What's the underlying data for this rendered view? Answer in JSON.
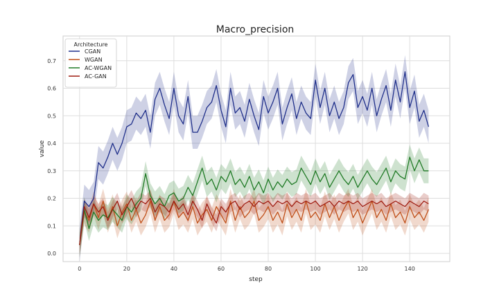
{
  "chart_data": {
    "type": "line",
    "title": "Macro_precision",
    "xlabel": "step",
    "ylabel": "value",
    "xlim": [
      -7,
      157
    ],
    "ylim": [
      -0.03,
      0.79
    ],
    "xticks": [
      0,
      20,
      40,
      60,
      80,
      100,
      120,
      140
    ],
    "yticks": [
      0.0,
      0.1,
      0.2,
      0.3,
      0.4,
      0.5,
      0.6,
      0.7
    ],
    "grid": true,
    "legend": {
      "title": "Architecture",
      "position": "top-left"
    },
    "series": [
      {
        "name": "CGAN",
        "color": "#1f2f8a",
        "band_halfwidth": 0.06,
        "points": [
          [
            0,
            0.03
          ],
          [
            2,
            0.19
          ],
          [
            4,
            0.17
          ],
          [
            6,
            0.2
          ],
          [
            8,
            0.33
          ],
          [
            10,
            0.31
          ],
          [
            12,
            0.35
          ],
          [
            14,
            0.4
          ],
          [
            16,
            0.36
          ],
          [
            18,
            0.4
          ],
          [
            20,
            0.46
          ],
          [
            22,
            0.47
          ],
          [
            24,
            0.51
          ],
          [
            26,
            0.49
          ],
          [
            28,
            0.52
          ],
          [
            30,
            0.44
          ],
          [
            32,
            0.56
          ],
          [
            34,
            0.6
          ],
          [
            36,
            0.54
          ],
          [
            38,
            0.49
          ],
          [
            40,
            0.6
          ],
          [
            42,
            0.5
          ],
          [
            44,
            0.47
          ],
          [
            46,
            0.57
          ],
          [
            48,
            0.44
          ],
          [
            50,
            0.44
          ],
          [
            52,
            0.48
          ],
          [
            54,
            0.53
          ],
          [
            56,
            0.55
          ],
          [
            58,
            0.61
          ],
          [
            60,
            0.52
          ],
          [
            62,
            0.46
          ],
          [
            64,
            0.6
          ],
          [
            66,
            0.51
          ],
          [
            68,
            0.53
          ],
          [
            70,
            0.48
          ],
          [
            72,
            0.56
          ],
          [
            74,
            0.5
          ],
          [
            76,
            0.45
          ],
          [
            78,
            0.57
          ],
          [
            80,
            0.51
          ],
          [
            82,
            0.55
          ],
          [
            84,
            0.6
          ],
          [
            86,
            0.47
          ],
          [
            88,
            0.53
          ],
          [
            90,
            0.58
          ],
          [
            92,
            0.49
          ],
          [
            94,
            0.55
          ],
          [
            96,
            0.51
          ],
          [
            98,
            0.49
          ],
          [
            100,
            0.63
          ],
          [
            102,
            0.53
          ],
          [
            104,
            0.6
          ],
          [
            106,
            0.5
          ],
          [
            108,
            0.55
          ],
          [
            110,
            0.49
          ],
          [
            112,
            0.53
          ],
          [
            114,
            0.62
          ],
          [
            116,
            0.65
          ],
          [
            118,
            0.53
          ],
          [
            120,
            0.57
          ],
          [
            122,
            0.52
          ],
          [
            124,
            0.6
          ],
          [
            126,
            0.5
          ],
          [
            128,
            0.56
          ],
          [
            130,
            0.61
          ],
          [
            132,
            0.52
          ],
          [
            134,
            0.63
          ],
          [
            136,
            0.55
          ],
          [
            138,
            0.66
          ],
          [
            140,
            0.53
          ],
          [
            142,
            0.59
          ],
          [
            144,
            0.48
          ],
          [
            146,
            0.52
          ],
          [
            148,
            0.46
          ]
        ]
      },
      {
        "name": "WGAN",
        "color": "#c0501a",
        "band_halfwidth": 0.045,
        "points": [
          [
            0,
            0.03
          ],
          [
            2,
            0.15
          ],
          [
            4,
            0.12
          ],
          [
            6,
            0.18
          ],
          [
            8,
            0.13
          ],
          [
            10,
            0.19
          ],
          [
            12,
            0.12
          ],
          [
            14,
            0.17
          ],
          [
            16,
            0.1
          ],
          [
            18,
            0.15
          ],
          [
            20,
            0.18
          ],
          [
            22,
            0.12
          ],
          [
            24,
            0.16
          ],
          [
            26,
            0.11
          ],
          [
            28,
            0.14
          ],
          [
            30,
            0.19
          ],
          [
            32,
            0.12
          ],
          [
            34,
            0.17
          ],
          [
            36,
            0.12
          ],
          [
            38,
            0.14
          ],
          [
            40,
            0.19
          ],
          [
            42,
            0.13
          ],
          [
            44,
            0.15
          ],
          [
            46,
            0.12
          ],
          [
            48,
            0.17
          ],
          [
            50,
            0.11
          ],
          [
            52,
            0.14
          ],
          [
            54,
            0.16
          ],
          [
            56,
            0.12
          ],
          [
            58,
            0.17
          ],
          [
            60,
            0.14
          ],
          [
            62,
            0.11
          ],
          [
            64,
            0.19
          ],
          [
            66,
            0.12
          ],
          [
            68,
            0.17
          ],
          [
            70,
            0.13
          ],
          [
            72,
            0.15
          ],
          [
            74,
            0.19
          ],
          [
            76,
            0.12
          ],
          [
            78,
            0.14
          ],
          [
            80,
            0.17
          ],
          [
            82,
            0.12
          ],
          [
            84,
            0.15
          ],
          [
            86,
            0.11
          ],
          [
            88,
            0.18
          ],
          [
            90,
            0.13
          ],
          [
            92,
            0.16
          ],
          [
            94,
            0.12
          ],
          [
            96,
            0.19
          ],
          [
            98,
            0.13
          ],
          [
            100,
            0.15
          ],
          [
            102,
            0.12
          ],
          [
            104,
            0.18
          ],
          [
            106,
            0.13
          ],
          [
            108,
            0.17
          ],
          [
            110,
            0.12
          ],
          [
            112,
            0.16
          ],
          [
            114,
            0.19
          ],
          [
            116,
            0.13
          ],
          [
            118,
            0.16
          ],
          [
            120,
            0.11
          ],
          [
            122,
            0.15
          ],
          [
            124,
            0.19
          ],
          [
            126,
            0.13
          ],
          [
            128,
            0.16
          ],
          [
            130,
            0.12
          ],
          [
            132,
            0.18
          ],
          [
            134,
            0.13
          ],
          [
            136,
            0.15
          ],
          [
            138,
            0.11
          ],
          [
            140,
            0.17
          ],
          [
            142,
            0.13
          ],
          [
            144,
            0.15
          ],
          [
            146,
            0.12
          ],
          [
            148,
            0.16
          ]
        ]
      },
      {
        "name": "AC-WGAN",
        "color": "#1f7a25",
        "band_halfwidth": 0.045,
        "points": [
          [
            0,
            0.03
          ],
          [
            2,
            0.16
          ],
          [
            4,
            0.09
          ],
          [
            6,
            0.15
          ],
          [
            8,
            0.12
          ],
          [
            10,
            0.14
          ],
          [
            12,
            0.13
          ],
          [
            14,
            0.16
          ],
          [
            16,
            0.14
          ],
          [
            18,
            0.12
          ],
          [
            20,
            0.17
          ],
          [
            22,
            0.15
          ],
          [
            24,
            0.18
          ],
          [
            26,
            0.2
          ],
          [
            28,
            0.29
          ],
          [
            30,
            0.21
          ],
          [
            32,
            0.18
          ],
          [
            34,
            0.2
          ],
          [
            36,
            0.17
          ],
          [
            38,
            0.21
          ],
          [
            40,
            0.22
          ],
          [
            42,
            0.19
          ],
          [
            44,
            0.2
          ],
          [
            46,
            0.24
          ],
          [
            48,
            0.21
          ],
          [
            50,
            0.26
          ],
          [
            52,
            0.31
          ],
          [
            54,
            0.25
          ],
          [
            56,
            0.27
          ],
          [
            58,
            0.23
          ],
          [
            60,
            0.28
          ],
          [
            62,
            0.26
          ],
          [
            64,
            0.3
          ],
          [
            66,
            0.25
          ],
          [
            68,
            0.27
          ],
          [
            70,
            0.24
          ],
          [
            72,
            0.28
          ],
          [
            74,
            0.23
          ],
          [
            76,
            0.26
          ],
          [
            78,
            0.22
          ],
          [
            80,
            0.27
          ],
          [
            82,
            0.23
          ],
          [
            84,
            0.26
          ],
          [
            86,
            0.24
          ],
          [
            88,
            0.27
          ],
          [
            90,
            0.25
          ],
          [
            92,
            0.26
          ],
          [
            94,
            0.31
          ],
          [
            96,
            0.28
          ],
          [
            98,
            0.25
          ],
          [
            100,
            0.3
          ],
          [
            102,
            0.26
          ],
          [
            104,
            0.29
          ],
          [
            106,
            0.24
          ],
          [
            108,
            0.27
          ],
          [
            110,
            0.3
          ],
          [
            112,
            0.27
          ],
          [
            114,
            0.25
          ],
          [
            116,
            0.28
          ],
          [
            118,
            0.24
          ],
          [
            120,
            0.27
          ],
          [
            122,
            0.3
          ],
          [
            124,
            0.27
          ],
          [
            126,
            0.25
          ],
          [
            128,
            0.28
          ],
          [
            130,
            0.31
          ],
          [
            132,
            0.26
          ],
          [
            134,
            0.3
          ],
          [
            136,
            0.28
          ],
          [
            138,
            0.27
          ],
          [
            140,
            0.35
          ],
          [
            142,
            0.3
          ],
          [
            144,
            0.34
          ],
          [
            146,
            0.3
          ],
          [
            148,
            0.3
          ]
        ]
      },
      {
        "name": "AC-GAN",
        "color": "#9e1a0f",
        "band_halfwidth": 0.03,
        "points": [
          [
            0,
            0.03
          ],
          [
            2,
            0.17
          ],
          [
            4,
            0.13
          ],
          [
            6,
            0.18
          ],
          [
            8,
            0.15
          ],
          [
            10,
            0.17
          ],
          [
            12,
            0.12
          ],
          [
            14,
            0.16
          ],
          [
            16,
            0.19
          ],
          [
            18,
            0.14
          ],
          [
            20,
            0.17
          ],
          [
            22,
            0.2
          ],
          [
            24,
            0.16
          ],
          [
            26,
            0.19
          ],
          [
            28,
            0.18
          ],
          [
            30,
            0.2
          ],
          [
            32,
            0.15
          ],
          [
            34,
            0.18
          ],
          [
            36,
            0.17
          ],
          [
            38,
            0.15
          ],
          [
            40,
            0.19
          ],
          [
            42,
            0.16
          ],
          [
            44,
            0.18
          ],
          [
            46,
            0.14
          ],
          [
            48,
            0.19
          ],
          [
            50,
            0.16
          ],
          [
            52,
            0.12
          ],
          [
            54,
            0.18
          ],
          [
            56,
            0.14
          ],
          [
            58,
            0.11
          ],
          [
            60,
            0.17
          ],
          [
            62,
            0.15
          ],
          [
            64,
            0.18
          ],
          [
            66,
            0.19
          ],
          [
            68,
            0.16
          ],
          [
            70,
            0.18
          ],
          [
            72,
            0.19
          ],
          [
            74,
            0.17
          ],
          [
            76,
            0.19
          ],
          [
            78,
            0.18
          ],
          [
            80,
            0.19
          ],
          [
            82,
            0.17
          ],
          [
            84,
            0.19
          ],
          [
            86,
            0.18
          ],
          [
            88,
            0.19
          ],
          [
            90,
            0.17
          ],
          [
            92,
            0.19
          ],
          [
            94,
            0.18
          ],
          [
            96,
            0.19
          ],
          [
            98,
            0.18
          ],
          [
            100,
            0.19
          ],
          [
            102,
            0.17
          ],
          [
            104,
            0.18
          ],
          [
            106,
            0.19
          ],
          [
            108,
            0.17
          ],
          [
            110,
            0.19
          ],
          [
            112,
            0.18
          ],
          [
            114,
            0.19
          ],
          [
            116,
            0.18
          ],
          [
            118,
            0.19
          ],
          [
            120,
            0.17
          ],
          [
            122,
            0.18
          ],
          [
            124,
            0.19
          ],
          [
            126,
            0.18
          ],
          [
            128,
            0.19
          ],
          [
            130,
            0.17
          ],
          [
            132,
            0.18
          ],
          [
            134,
            0.19
          ],
          [
            136,
            0.18
          ],
          [
            138,
            0.17
          ],
          [
            140,
            0.19
          ],
          [
            142,
            0.18
          ],
          [
            144,
            0.17
          ],
          [
            146,
            0.19
          ],
          [
            148,
            0.18
          ]
        ]
      }
    ]
  }
}
